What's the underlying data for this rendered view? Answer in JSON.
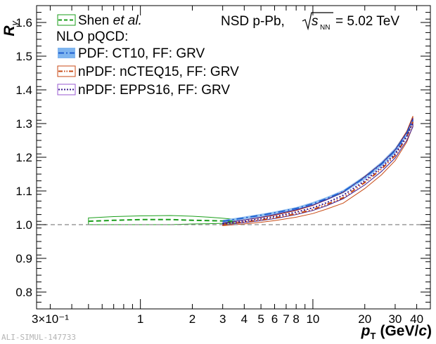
{
  "chart_data": {
    "type": "line",
    "xscale": "log",
    "xlim": [
      0.25,
      48
    ],
    "ylim": [
      0.75,
      1.65
    ],
    "xlabel_main": "p",
    "xlabel_sub": "T",
    "xlabel_unit_pre": "(GeV/",
    "xlabel_unit_var": "c",
    "xlabel_unit_post": ")",
    "ylabel_main": "R",
    "ylabel_sub": "γ",
    "x_ticks": [
      {
        "value": 0.3,
        "label": "3×10⁻¹"
      },
      {
        "value": 1,
        "label": "1"
      },
      {
        "value": 2,
        "label": "2"
      },
      {
        "value": 3,
        "label": "3"
      },
      {
        "value": 4,
        "label": "4"
      },
      {
        "value": 5,
        "label": "5"
      },
      {
        "value": 6,
        "label": "6"
      },
      {
        "value": 7,
        "label": "7"
      },
      {
        "value": 8,
        "label": "8"
      },
      {
        "value": 10,
        "label": "10"
      },
      {
        "value": 20,
        "label": "20"
      },
      {
        "value": 30,
        "label": "30"
      },
      {
        "value": 40,
        "label": "40"
      }
    ],
    "y_ticks": [
      {
        "value": 0.8,
        "label": "0.8"
      },
      {
        "value": 0.9,
        "label": "0.9"
      },
      {
        "value": 1.0,
        "label": "1.0"
      },
      {
        "value": 1.1,
        "label": "1.1"
      },
      {
        "value": 1.2,
        "label": "1.2"
      },
      {
        "value": 1.3,
        "label": "1.3"
      },
      {
        "value": 1.4,
        "label": "1.4"
      },
      {
        "value": 1.5,
        "label": "1.5"
      },
      {
        "value": 1.6,
        "label": "1.6"
      }
    ],
    "reference_line": 1.0,
    "header": {
      "system": "NSD p-Pb,",
      "energy_var": "s",
      "energy_sub": "NN",
      "energy_value": "= 5.02 TeV"
    },
    "legend": {
      "first_name": "Shen ",
      "first_name_italic": "et al.",
      "group_title": "NLO pQCD:",
      "entries": [
        "PDF: CT10, FF: GRV",
        "nPDF: nCTEQ15, FF: GRV",
        "nPDF: EPPS16, FF: GRV"
      ]
    },
    "series": [
      {
        "name": "Shen et al.",
        "color": "#1a9e1a",
        "style": "dashed",
        "band_fill": "none",
        "x": [
          0.5,
          0.7,
          1.0,
          1.5,
          2.0,
          2.5,
          3.0,
          3.5
        ],
        "y": [
          1.01,
          1.013,
          1.015,
          1.015,
          1.013,
          1.012,
          1.011,
          1.01
        ],
        "y_low": [
          1.0,
          1.0,
          1.0,
          1.0,
          1.002,
          1.003,
          1.004,
          1.005
        ],
        "y_high": [
          1.02,
          1.024,
          1.026,
          1.027,
          1.025,
          1.022,
          1.019,
          1.016
        ]
      },
      {
        "name": "PDF: CT10, FF: GRV",
        "color": "#1f5fd0",
        "style": "dashdot",
        "band_fill": "#7fb5ef",
        "x": [
          3,
          4,
          5,
          6,
          8,
          10,
          12,
          15,
          20,
          25,
          30,
          35,
          38
        ],
        "y": [
          1.01,
          1.02,
          1.028,
          1.035,
          1.048,
          1.062,
          1.077,
          1.098,
          1.14,
          1.18,
          1.22,
          1.27,
          1.31
        ],
        "y_low": [
          1.006,
          1.016,
          1.024,
          1.031,
          1.044,
          1.057,
          1.072,
          1.093,
          1.134,
          1.173,
          1.212,
          1.262,
          1.3
        ],
        "y_high": [
          1.014,
          1.024,
          1.032,
          1.039,
          1.052,
          1.067,
          1.082,
          1.103,
          1.146,
          1.187,
          1.228,
          1.278,
          1.32
        ]
      },
      {
        "name": "nPDF: nCTEQ15, FF: GRV",
        "color": "#c84a14",
        "style": "dashdotdot",
        "band_fill": "none",
        "x": [
          3,
          4,
          5,
          6,
          8,
          10,
          12,
          15,
          20,
          25,
          30,
          35,
          38
        ],
        "y": [
          1.0,
          1.008,
          1.014,
          1.02,
          1.032,
          1.045,
          1.06,
          1.08,
          1.125,
          1.165,
          1.205,
          1.26,
          1.305
        ],
        "y_low": [
          0.997,
          1.002,
          1.007,
          1.012,
          1.022,
          1.033,
          1.046,
          1.064,
          1.107,
          1.148,
          1.19,
          1.245,
          1.292
        ],
        "y_high": [
          1.004,
          1.014,
          1.021,
          1.028,
          1.042,
          1.057,
          1.074,
          1.096,
          1.143,
          1.182,
          1.222,
          1.277,
          1.322
        ]
      },
      {
        "name": "nPDF: EPPS16, FF: GRV",
        "color": "#3a1a8e",
        "style": "dotted",
        "band_fill": "none",
        "x": [
          3,
          4,
          5,
          6,
          8,
          10,
          12,
          15,
          20,
          25,
          30,
          35,
          38
        ],
        "y": [
          1.002,
          1.01,
          1.017,
          1.024,
          1.037,
          1.05,
          1.065,
          1.087,
          1.13,
          1.17,
          1.21,
          1.262,
          1.303
        ],
        "y_low": [
          0.999,
          1.006,
          1.012,
          1.018,
          1.03,
          1.042,
          1.056,
          1.077,
          1.118,
          1.158,
          1.198,
          1.25,
          1.29
        ],
        "y_high": [
          1.005,
          1.014,
          1.022,
          1.03,
          1.044,
          1.058,
          1.074,
          1.097,
          1.142,
          1.182,
          1.222,
          1.274,
          1.316
        ]
      }
    ]
  },
  "watermark": "ALI-SIMUL-147733"
}
